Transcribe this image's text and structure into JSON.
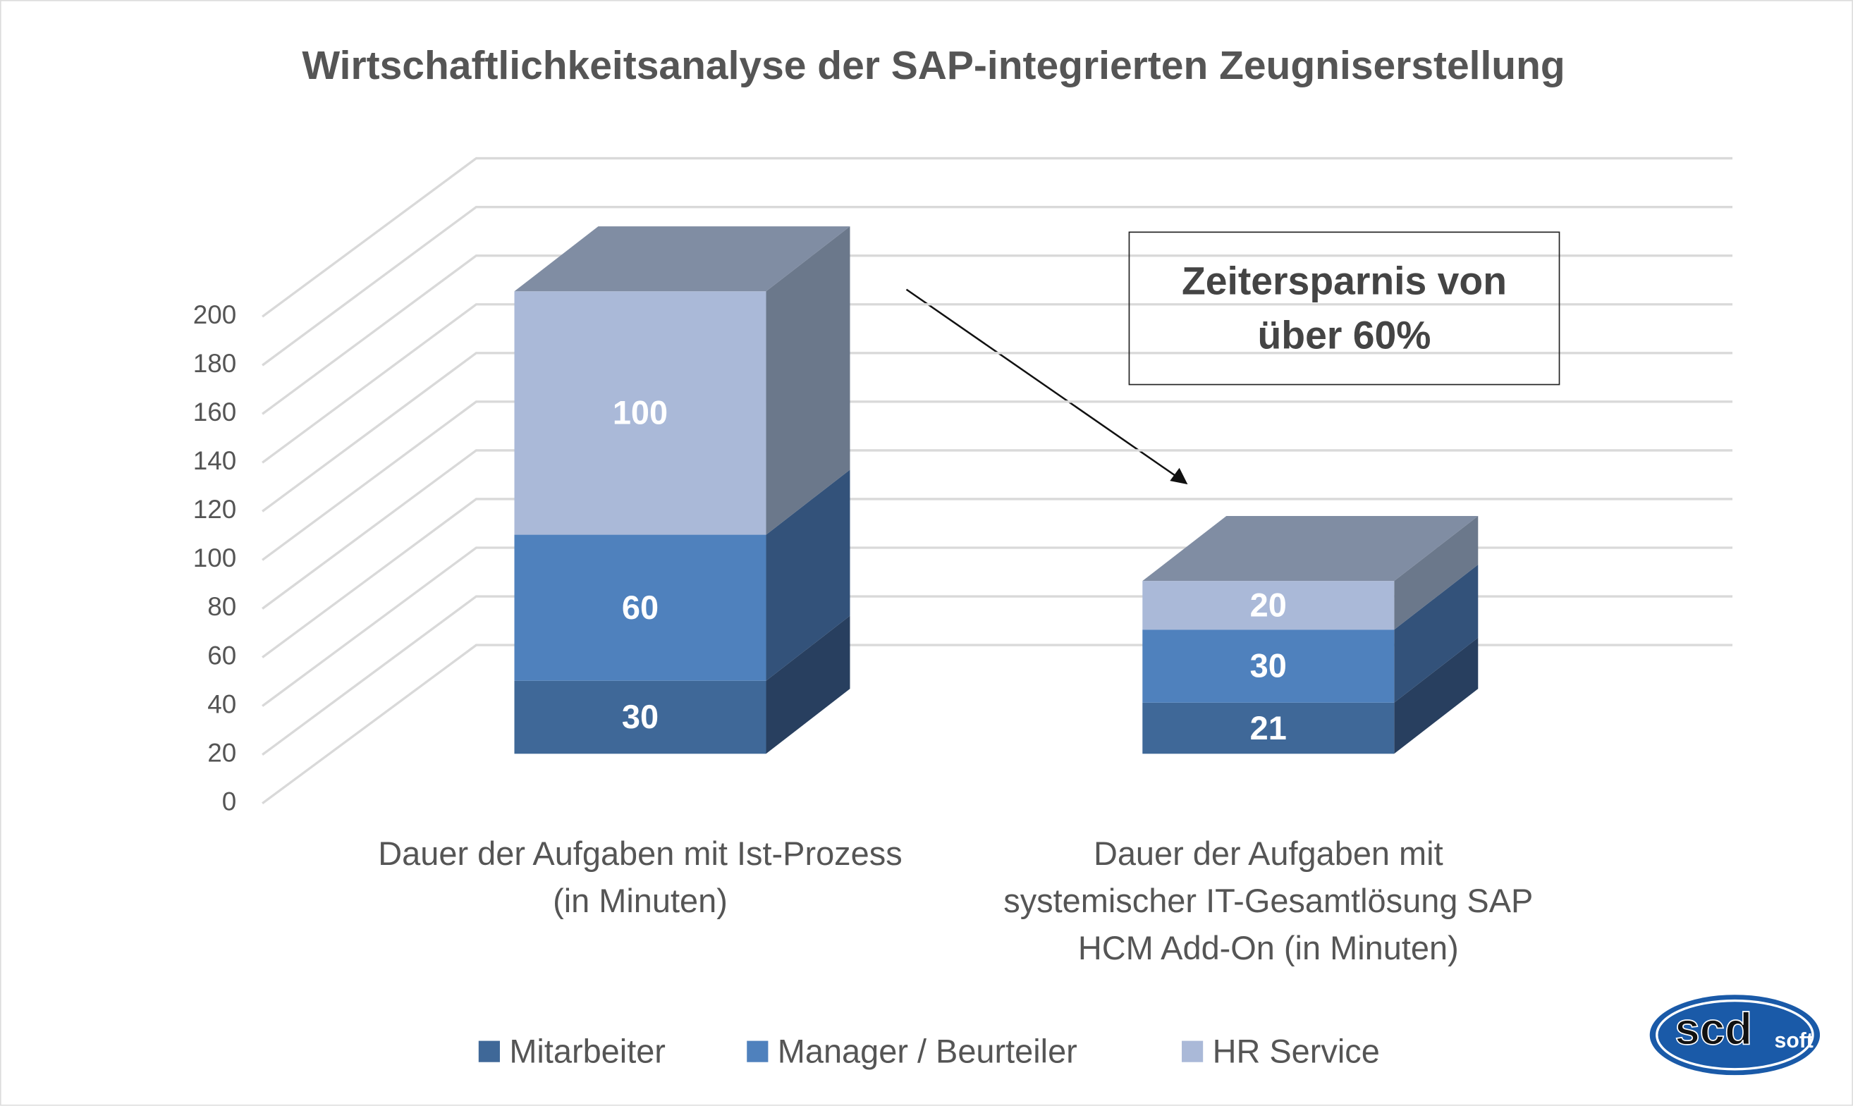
{
  "chart_data": {
    "type": "bar3d_stacked",
    "title": "Wirtschaftlichkeitsanalyse der SAP-integrierten Zeugniserstellung",
    "categories": [
      "Dauer der Aufgaben mit Ist-Prozess (in Minuten)",
      "Dauer der Aufgaben mit systemischer IT-Gesamtlösung SAP HCM Add-On (in Minuten)"
    ],
    "series": [
      {
        "name": "Mitarbeiter",
        "color": "#3f6898",
        "side_color": "#283f5f",
        "values": [
          30,
          21
        ]
      },
      {
        "name": "Manager / Beurteiler",
        "color": "#4f81bd",
        "side_color": "#33527a",
        "values": [
          60,
          30
        ]
      },
      {
        "name": "HR Service",
        "color": "#aab9d8",
        "side_color": "#6b788b",
        "values": [
          100,
          20
        ]
      }
    ],
    "top_color": "#808da3",
    "ylim": [
      0,
      200
    ],
    "yticks": [
      0,
      20,
      40,
      60,
      80,
      100,
      120,
      140,
      160,
      180,
      200
    ],
    "grid": true,
    "annotation": "Zeitersparnis von über 60%"
  },
  "logo": {
    "main": "scd",
    "sub": "soft"
  }
}
